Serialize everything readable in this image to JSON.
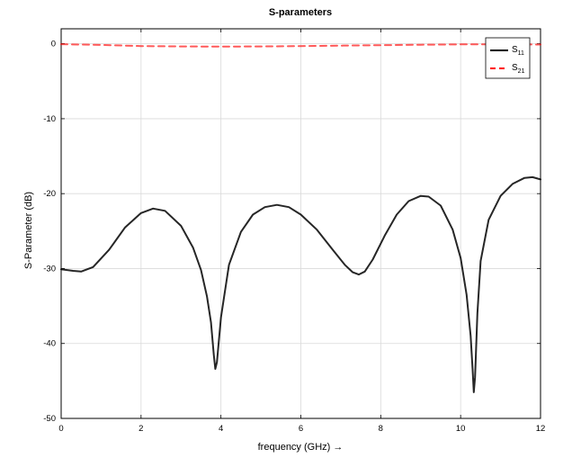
{
  "chart_data": {
    "type": "line",
    "title": "S-parameters",
    "xlabel": "frequency (GHz) →",
    "ylabel": "S-Parameter (dB)",
    "xlim": [
      0,
      12
    ],
    "ylim": [
      -50,
      2
    ],
    "xticks": [
      0,
      2,
      4,
      6,
      8,
      10,
      12
    ],
    "yticks": [
      0,
      -10,
      -20,
      -30,
      -40,
      -50
    ],
    "xtick_labels": [
      "0",
      "2",
      "4",
      "6",
      "8",
      "10",
      "12"
    ],
    "ytick_labels": [
      "0",
      "-10",
      "-20",
      "-30",
      "-40",
      "-50"
    ],
    "grid": true,
    "legend_position": "top-right",
    "series": [
      {
        "name": "S11",
        "legend_main": "S",
        "legend_sub": "11",
        "color": "#000000",
        "style": "solid",
        "x": [
          0,
          0.3,
          0.5,
          0.8,
          1.2,
          1.6,
          2.0,
          2.3,
          2.6,
          3.0,
          3.3,
          3.5,
          3.65,
          3.75,
          3.82,
          3.86,
          3.9,
          4.0,
          4.2,
          4.5,
          4.8,
          5.1,
          5.4,
          5.7,
          6.0,
          6.4,
          6.8,
          7.1,
          7.3,
          7.45,
          7.6,
          7.8,
          8.1,
          8.4,
          8.7,
          9.0,
          9.2,
          9.5,
          9.8,
          10.0,
          10.15,
          10.25,
          10.3,
          10.33,
          10.36,
          10.42,
          10.5,
          10.7,
          11.0,
          11.3,
          11.6,
          11.8,
          12.0
        ],
        "y": [
          -30.1,
          -30.3,
          -30.4,
          -29.8,
          -27.5,
          -24.5,
          -22.6,
          -22.0,
          -22.3,
          -24.3,
          -27.2,
          -30.2,
          -33.7,
          -37.2,
          -41.5,
          -43.4,
          -42.5,
          -36.5,
          -29.5,
          -25.1,
          -22.8,
          -21.8,
          -21.5,
          -21.8,
          -22.8,
          -24.8,
          -27.5,
          -29.5,
          -30.5,
          -30.8,
          -30.4,
          -28.8,
          -25.6,
          -22.8,
          -21.0,
          -20.3,
          -20.4,
          -21.6,
          -24.8,
          -28.6,
          -33.5,
          -39.0,
          -43.5,
          -46.5,
          -44.5,
          -36.0,
          -29.0,
          -23.5,
          -20.3,
          -18.7,
          -17.9,
          -17.8,
          -18.1
        ]
      },
      {
        "name": "S21",
        "legend_main": "S",
        "legend_sub": "21",
        "color": "#ff0000",
        "style": "dashed",
        "x": [
          0,
          1,
          2,
          3,
          4,
          5,
          6,
          7,
          8,
          9,
          10,
          11,
          12
        ],
        "y": [
          -0.05,
          -0.15,
          -0.3,
          -0.35,
          -0.38,
          -0.35,
          -0.3,
          -0.25,
          -0.18,
          -0.12,
          -0.08,
          -0.06,
          -0.1
        ]
      }
    ]
  }
}
